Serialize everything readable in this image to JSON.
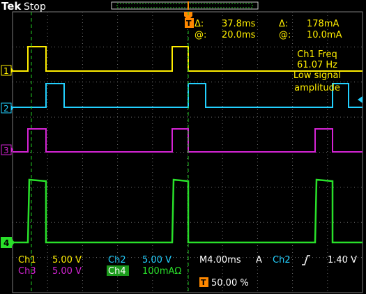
{
  "header": {
    "brand": "Tek",
    "state": "Stop"
  },
  "readout": {
    "delta_time": "37.8ms",
    "delta_current": "178mA",
    "at_time": "20.0ms",
    "at_current": "10.0mA",
    "delta_symbol": "Δ:",
    "at_symbol": "@:"
  },
  "measurement": {
    "line1": "Ch1 Freq",
    "line2": "61.07 Hz",
    "line3": "Low signal",
    "line4": "amplitude"
  },
  "channels": [
    {
      "id": "1",
      "label": "Ch1",
      "scale": "5.00 V",
      "color": "#ffee00"
    },
    {
      "id": "2",
      "label": "Ch2",
      "scale": "5.00 V",
      "color": "#22d0ff"
    },
    {
      "id": "3",
      "label": "Ch3",
      "scale": "5.00 V",
      "color": "#d524d5"
    },
    {
      "id": "4",
      "label": "Ch4",
      "scale": "100mAΩ",
      "color": "#29e02a"
    }
  ],
  "timebase": {
    "value": "M4.00ms",
    "mode": "A",
    "trigger_source": "Ch2",
    "trigger_level": "1.40 V"
  },
  "trigger_position": "50.00 %",
  "icons": [
    "trigger-slope-rising-icon",
    "trigger-marker-icon",
    "channel-ground-marker-icon"
  ],
  "colors": {
    "background": "#000000",
    "grid": "#808080",
    "cursor": "#22cc22",
    "readout": "#ffee00",
    "trigger": "#ff8800"
  }
}
